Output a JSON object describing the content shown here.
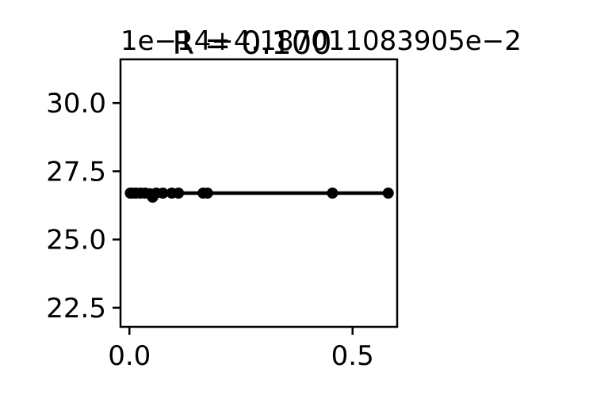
{
  "chart_data": {
    "type": "scatter",
    "title": "R = 0.100",
    "offset_text": "1e−14+4.1870110839 05e−2",
    "offset_text_display": "1e−14+4.187011083905e−2",
    "xlabel": "",
    "ylabel": "",
    "xlim": [
      -0.02,
      0.6
    ],
    "ylim": [
      21.8,
      31.6
    ],
    "xticks": [
      0.0,
      0.5
    ],
    "xtick_labels": [
      "0.0",
      "0.5"
    ],
    "yticks": [
      22.5,
      25.0,
      27.5,
      30.0
    ],
    "ytick_labels": [
      "22.5",
      "25.0",
      "27.5",
      "30.0"
    ],
    "grid": false,
    "fit_line": {
      "x": [
        0.0,
        0.58
      ],
      "y": [
        26.7,
        26.7
      ]
    },
    "series": [
      {
        "points": [
          {
            "x": 0.002,
            "y": 26.7
          },
          {
            "x": 0.008,
            "y": 26.7
          },
          {
            "x": 0.015,
            "y": 26.7
          },
          {
            "x": 0.025,
            "y": 26.7
          },
          {
            "x": 0.035,
            "y": 26.7
          },
          {
            "x": 0.045,
            "y": 26.68
          },
          {
            "x": 0.052,
            "y": 26.55
          },
          {
            "x": 0.06,
            "y": 26.7
          },
          {
            "x": 0.075,
            "y": 26.7
          },
          {
            "x": 0.095,
            "y": 26.7
          },
          {
            "x": 0.11,
            "y": 26.7
          },
          {
            "x": 0.165,
            "y": 26.7
          },
          {
            "x": 0.175,
            "y": 26.7
          },
          {
            "x": 0.455,
            "y": 26.7
          },
          {
            "x": 0.58,
            "y": 26.7
          }
        ]
      }
    ],
    "colors": {
      "points": "#000000",
      "line": "#000000",
      "axes": "#000000"
    }
  }
}
